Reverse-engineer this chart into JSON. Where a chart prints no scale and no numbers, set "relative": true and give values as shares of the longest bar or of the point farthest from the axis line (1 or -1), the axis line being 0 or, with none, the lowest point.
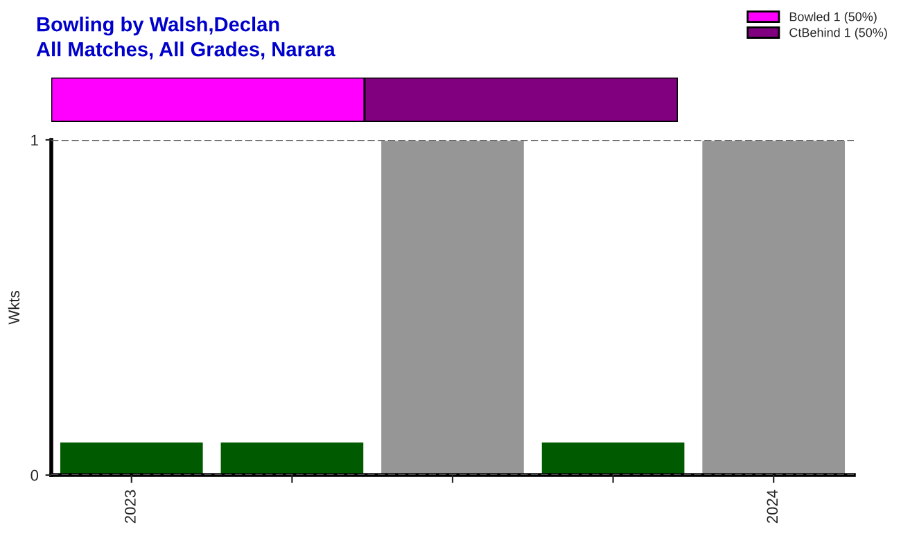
{
  "chart_data": [
    {
      "type": "bar",
      "orientation": "horizontal",
      "stacked": true,
      "relative": true,
      "title": "Bowling by Walsh,Declan",
      "subtitle": "All Matches, All Grades, Narara",
      "categories": [
        null
      ],
      "legend": "top right",
      "series": [
        {
          "name": "Bowled 1 (50%)",
          "color": "#ff00ff",
          "values": [
            0.5
          ]
        },
        {
          "name": "CtBehind 1 (50%)",
          "color": "#800080",
          "values": [
            0.5
          ]
        }
      ]
    },
    {
      "type": "bar",
      "ylabel": "Wkts",
      "categories": [
        "2023",
        null,
        null,
        null,
        "2024"
      ],
      "values": [
        0.1,
        0.1,
        1,
        0.1,
        1
      ],
      "colors": [
        "#005a00",
        "#005a00",
        "#969696",
        "#005a00",
        "#969696"
      ],
      "ylim": [
        0,
        1
      ],
      "yticks": [
        0,
        1
      ],
      "grid": "y"
    }
  ]
}
